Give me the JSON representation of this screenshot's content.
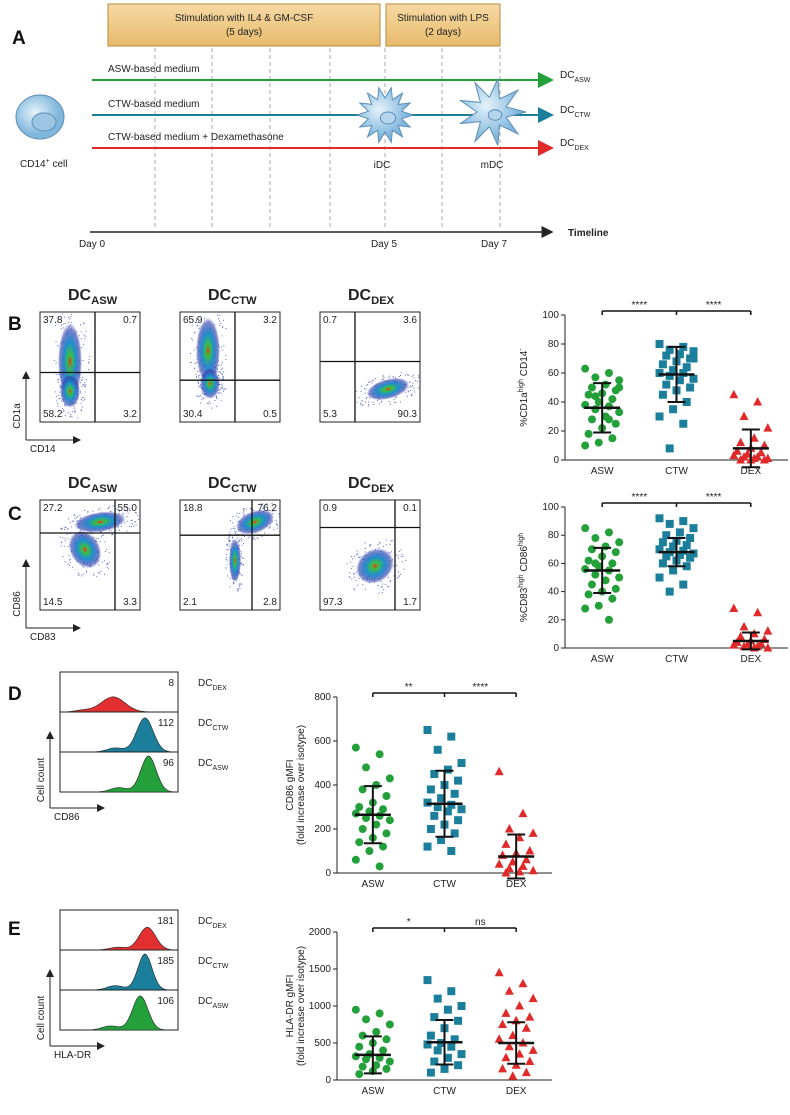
{
  "panel_a": {
    "letter": "A",
    "boxes": [
      {
        "line1": "Stimulation with IL4 & GM-CSF",
        "line2": "(5 days)"
      },
      {
        "line1": "Stimulation with LPS",
        "line2": "(2 days)"
      }
    ],
    "media": [
      {
        "label": "ASW-based medium",
        "result": [
          {
            "text": "DC"
          },
          {
            "text": "ASW",
            "sub": true
          }
        ],
        "color": "#23a03a"
      },
      {
        "label": "CTW-based medium",
        "result": [
          {
            "text": "DC"
          },
          {
            "text": "CTW",
            "sub": true
          }
        ],
        "color": "#1b7f9c"
      },
      {
        "label": "CTW-based medium + Dexamethasone",
        "result": [
          {
            "text": "DC"
          },
          {
            "text": "DEX",
            "sub": true
          }
        ],
        "color": "#e02a2a"
      }
    ],
    "cell_label": [
      {
        "text": "CD14"
      },
      {
        "text": "+",
        "sup": true
      },
      {
        "text": " cell"
      }
    ],
    "stages": [
      "iDC",
      "mDC"
    ],
    "timeline": {
      "days": [
        "Day 0",
        "Day 5",
        "Day 7"
      ],
      "label": "Timeline"
    }
  },
  "panel_b": {
    "letter": "B",
    "flow": {
      "x_label": "CD14",
      "y_label": "CD1a",
      "plots": [
        {
          "title": [
            {
              "text": "DC"
            },
            {
              "text": "ASW",
              "sub": true
            }
          ],
          "color": "#23a03a",
          "quadrants": [
            "37.8",
            "0.7",
            "58.2",
            "3.2"
          ]
        },
        {
          "title": [
            {
              "text": "DC"
            },
            {
              "text": "CTW",
              "sub": true
            }
          ],
          "color": "#1b87a6",
          "quadrants": [
            "65.9",
            "3.2",
            "30.4",
            "0.5"
          ]
        },
        {
          "title": [
            {
              "text": "DC"
            },
            {
              "text": "DEX",
              "sub": true
            }
          ],
          "color": "#e23030",
          "quadrants": [
            "0.7",
            "3.6",
            "5.3",
            "90.3"
          ]
        }
      ]
    },
    "dotplot": {
      "ylabel": [
        [
          {
            "text": "%CD1a"
          },
          {
            "text": "high",
            "sup": true
          },
          {
            "text": " CD14"
          },
          {
            "text": "-",
            "sup": true
          }
        ]
      ],
      "categories": [
        "ASW",
        "CTW",
        "DEX"
      ],
      "ylim": [
        0,
        100
      ],
      "yticks": [
        0,
        20,
        40,
        60,
        80,
        100
      ],
      "significance": [
        "****",
        "****"
      ],
      "groups": [
        {
          "color": "#23a03a",
          "marker": "circle",
          "values": [
            63,
            60,
            57,
            55,
            52,
            50,
            48,
            46,
            45,
            42,
            40,
            38,
            37,
            35,
            33,
            30,
            28,
            25,
            22,
            18,
            15,
            12,
            10,
            28,
            44,
            50
          ],
          "mean": 36,
          "sd": 17
        },
        {
          "color": "#1b7f9c",
          "marker": "square",
          "values": [
            80,
            78,
            76,
            75,
            73,
            72,
            70,
            68,
            66,
            64,
            62,
            60,
            60,
            58,
            56,
            55,
            52,
            50,
            48,
            45,
            40,
            35,
            30,
            25,
            8,
            70
          ],
          "mean": 59,
          "sd": 19
        },
        {
          "color": "#e02a2a",
          "marker": "triangle",
          "values": [
            45,
            40,
            30,
            22,
            15,
            12,
            10,
            8,
            6,
            5,
            4,
            3,
            2,
            2,
            1,
            1,
            0,
            0,
            0
          ],
          "mean": 8,
          "sd": 13
        }
      ]
    }
  },
  "panel_c": {
    "letter": "C",
    "flow": {
      "x_label": "CD83",
      "y_label": "CD86",
      "plots": [
        {
          "title": [
            {
              "text": "DC"
            },
            {
              "text": "ASW",
              "sub": true
            }
          ],
          "color": "#23a03a",
          "quadrants": [
            "27.2",
            "55.0",
            "14.5",
            "3.3"
          ]
        },
        {
          "title": [
            {
              "text": "DC"
            },
            {
              "text": "CTW",
              "sub": true
            }
          ],
          "color": "#1b87a6",
          "quadrants": [
            "18.8",
            "76.2",
            "2.1",
            "2.8"
          ]
        },
        {
          "title": [
            {
              "text": "DC"
            },
            {
              "text": "DEX",
              "sub": true
            }
          ],
          "color": "#e23030",
          "quadrants": [
            "0.9",
            "0.1",
            "97.3",
            "1.7"
          ]
        }
      ]
    },
    "dotplot": {
      "ylabel": [
        [
          {
            "text": "%CD83"
          },
          {
            "text": "high",
            "sup": true
          },
          {
            "text": " CD86"
          },
          {
            "text": "high",
            "sup": true
          }
        ]
      ],
      "categories": [
        "ASW",
        "CTW",
        "DEX"
      ],
      "ylim": [
        0,
        100
      ],
      "yticks": [
        0,
        20,
        40,
        60,
        80,
        100
      ],
      "significance": [
        "****",
        "****"
      ],
      "groups": [
        {
          "color": "#23a03a",
          "marker": "circle",
          "values": [
            85,
            82,
            78,
            75,
            72,
            70,
            68,
            65,
            62,
            60,
            58,
            56,
            55,
            52,
            50,
            48,
            45,
            42,
            40,
            38,
            35,
            30,
            28,
            20,
            60
          ],
          "mean": 55,
          "sd": 16
        },
        {
          "color": "#1b7f9c",
          "marker": "square",
          "values": [
            92,
            90,
            88,
            85,
            82,
            80,
            78,
            76,
            75,
            73,
            72,
            70,
            69,
            68,
            67,
            66,
            65,
            64,
            62,
            60,
            58,
            55,
            50,
            45,
            40
          ],
          "mean": 68,
          "sd": 10
        },
        {
          "color": "#e02a2a",
          "marker": "triangle",
          "values": [
            28,
            25,
            15,
            12,
            10,
            8,
            6,
            5,
            4,
            3,
            2,
            2,
            1,
            1,
            0,
            0
          ],
          "mean": 5,
          "sd": 6
        }
      ]
    }
  },
  "panel_d": {
    "letter": "D",
    "hist": {
      "x_label": "CD86",
      "y_label": "Cell count",
      "rows": [
        {
          "label": [
            {
              "text": "DC"
            },
            {
              "text": "DEX",
              "sub": true
            }
          ],
          "color": "#e23030",
          "value": 8
        },
        {
          "label": [
            {
              "text": "DC"
            },
            {
              "text": "CTW",
              "sub": true
            }
          ],
          "color": "#1b7f9c",
          "value": 112
        },
        {
          "label": [
            {
              "text": "DC"
            },
            {
              "text": "ASW",
              "sub": true
            }
          ],
          "color": "#23a03a",
          "value": 96
        }
      ]
    },
    "dotplot": {
      "ylabel": [
        [
          {
            "text": "CD86 gMFI"
          }
        ],
        [
          {
            "text": "(fold increase over isotype)"
          }
        ]
      ],
      "categories": [
        "ASW",
        "CTW",
        "DEX"
      ],
      "ylim": [
        0,
        800
      ],
      "yticks": [
        0,
        200,
        400,
        600,
        800
      ],
      "significance": [
        "**",
        "****"
      ],
      "groups": [
        {
          "color": "#23a03a",
          "marker": "circle",
          "values": [
            570,
            540,
            480,
            430,
            400,
            380,
            350,
            320,
            300,
            290,
            280,
            270,
            260,
            250,
            240,
            220,
            200,
            180,
            160,
            140,
            120,
            100,
            60,
            30
          ],
          "mean": 265,
          "sd": 130
        },
        {
          "color": "#1b7f9c",
          "marker": "square",
          "values": [
            650,
            620,
            560,
            500,
            470,
            450,
            420,
            400,
            380,
            360,
            340,
            320,
            310,
            300,
            290,
            280,
            260,
            240,
            220,
            200,
            180,
            150,
            120,
            100
          ],
          "mean": 315,
          "sd": 150
        },
        {
          "color": "#e02a2a",
          "marker": "triangle",
          "values": [
            460,
            270,
            200,
            180,
            160,
            130,
            100,
            90,
            80,
            60,
            50,
            40,
            30,
            20,
            10,
            5,
            0
          ],
          "mean": 75,
          "sd": 100
        }
      ]
    }
  },
  "panel_e": {
    "letter": "E",
    "hist": {
      "x_label": "HLA-DR",
      "y_label": "Cell count",
      "rows": [
        {
          "label": [
            {
              "text": "DC"
            },
            {
              "text": "DEX",
              "sub": true
            }
          ],
          "color": "#e23030",
          "value": 181
        },
        {
          "label": [
            {
              "text": "DC"
            },
            {
              "text": "CTW",
              "sub": true
            }
          ],
          "color": "#1b7f9c",
          "value": 185
        },
        {
          "label": [
            {
              "text": "DC"
            },
            {
              "text": "ASW",
              "sub": true
            }
          ],
          "color": "#23a03a",
          "value": 106
        }
      ]
    },
    "dotplot": {
      "ylabel": [
        [
          {
            "text": "HLA-DR gMFI"
          }
        ],
        [
          {
            "text": "(fold increase over isotype)"
          }
        ]
      ],
      "categories": [
        "ASW",
        "CTW",
        "DEX"
      ],
      "ylim": [
        0,
        2000
      ],
      "yticks": [
        0,
        500,
        1000,
        1500,
        2000
      ],
      "significance": [
        "*",
        "ns"
      ],
      "groups": [
        {
          "color": "#23a03a",
          "marker": "circle",
          "values": [
            950,
            900,
            820,
            750,
            650,
            600,
            550,
            500,
            450,
            400,
            350,
            320,
            300,
            280,
            250,
            200,
            180,
            150,
            120,
            80
          ],
          "mean": 340,
          "sd": 250
        },
        {
          "color": "#1b7f9c",
          "marker": "square",
          "values": [
            1350,
            1200,
            1100,
            1000,
            950,
            850,
            800,
            700,
            600,
            550,
            500,
            480,
            450,
            400,
            350,
            300,
            250,
            200,
            150,
            100
          ],
          "mean": 510,
          "sd": 300
        },
        {
          "color": "#e02a2a",
          "marker": "triangle",
          "values": [
            1450,
            1300,
            1200,
            1100,
            1000,
            900,
            850,
            800,
            750,
            700,
            600,
            550,
            500,
            450,
            400,
            350,
            300,
            250,
            200,
            150,
            100,
            50
          ],
          "mean": 500,
          "sd": 280
        }
      ]
    }
  }
}
